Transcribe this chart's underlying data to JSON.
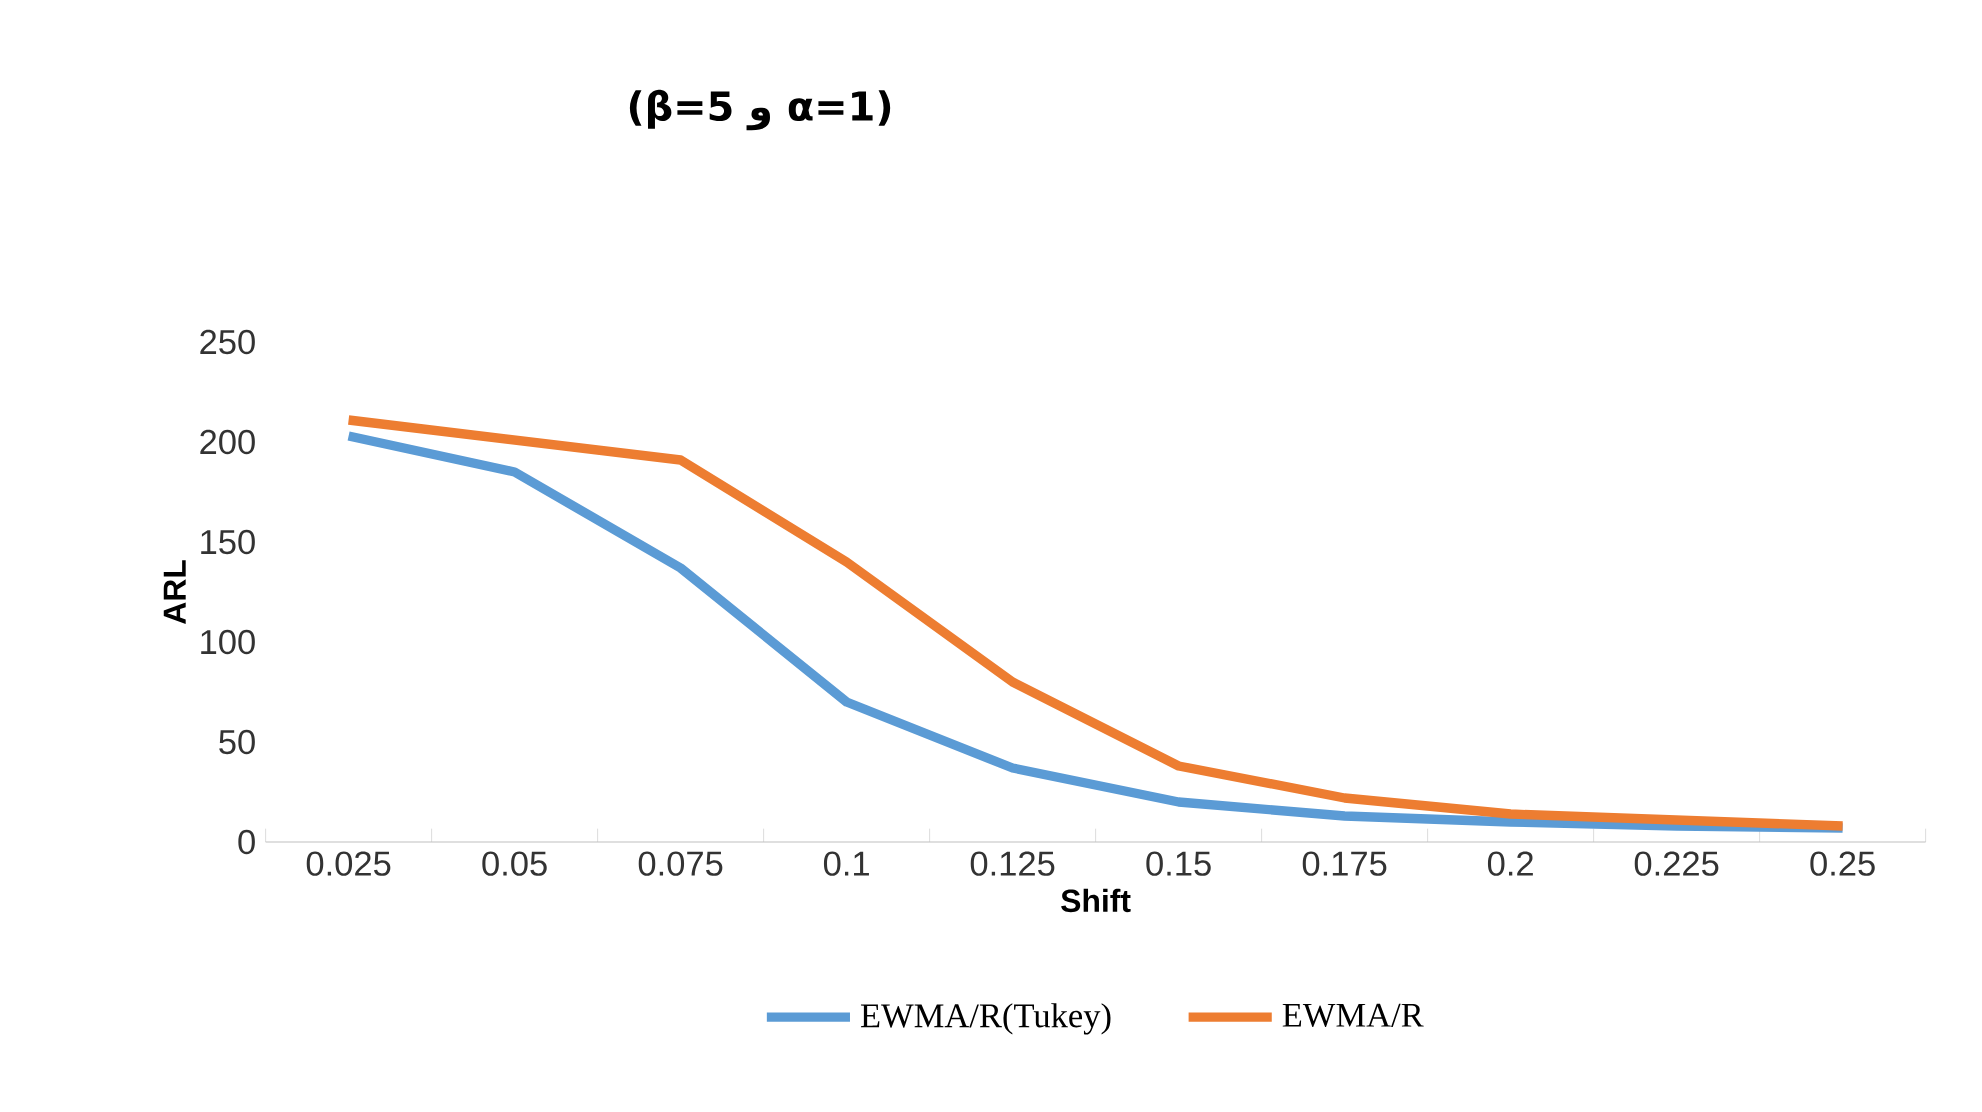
{
  "chart_data": {
    "type": "line",
    "title": "(β=5 و α=1)",
    "xlabel": "Shift",
    "ylabel": "ARL",
    "categories": [
      "0.025",
      "0.05",
      "0.075",
      "0.1",
      "0.125",
      "0.15",
      "0.175",
      "0.2",
      "0.225",
      "0.25"
    ],
    "series": [
      {
        "name": "EWMA/R(Tukey)",
        "color": "#5b9bd5",
        "values": [
          203,
          185,
          137,
          70,
          37,
          20,
          13,
          10,
          8,
          7
        ]
      },
      {
        "name": "EWMA/R",
        "color": "#ed7d31",
        "values": [
          211,
          201,
          191,
          140,
          80,
          38,
          22,
          14,
          11,
          8
        ]
      }
    ],
    "ylim": [
      0,
      250
    ],
    "yticks": [
      0,
      50,
      100,
      150,
      200,
      250
    ],
    "legend": "bottom",
    "marker": "none",
    "line_style": "solid",
    "grid": false
  }
}
